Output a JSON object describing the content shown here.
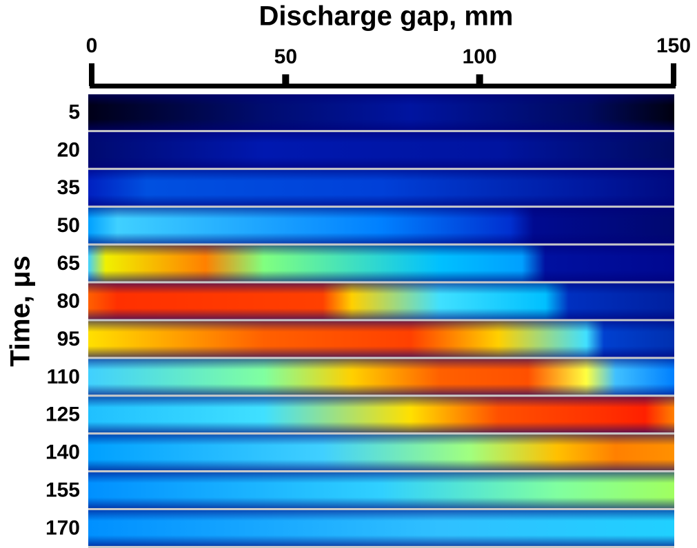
{
  "chart_data": {
    "type": "image-strips",
    "xlabel": "Discharge gap, mm",
    "xlim": [
      0,
      150
    ],
    "xticks": [
      0,
      50,
      100,
      150
    ],
    "ylabel": "Time, μs",
    "categories": [
      5,
      20,
      35,
      50,
      65,
      80,
      95,
      110,
      125,
      140,
      155,
      170
    ]
  }
}
